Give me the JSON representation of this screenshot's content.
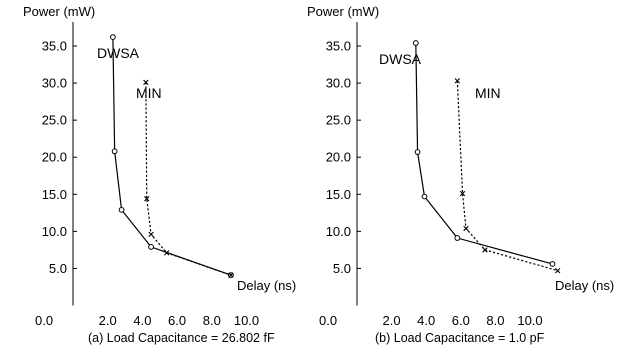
{
  "chart_data": [
    {
      "type": "line",
      "title": "(a)  Load Capacitance = 26.802 fF",
      "xlabel": "Delay (ns)",
      "ylabel": "Power (mW)",
      "origin_label": "0.0",
      "xlim": [
        0,
        11.5
      ],
      "ylim": [
        0,
        38
      ],
      "x_ticks": [
        "2.0",
        "4.0",
        "6.0",
        "8.0",
        "10.0"
      ],
      "y_ticks": [
        "5.0",
        "10.0",
        "15.0",
        "20.0",
        "25.0",
        "30.0",
        "35.0"
      ],
      "grid": false,
      "series": [
        {
          "name": "DWSA",
          "style": "solid",
          "marker": "circle",
          "x": [
            2.3,
            2.4,
            2.8,
            4.5,
            9.1
          ],
          "y": [
            36.2,
            20.8,
            12.9,
            7.9,
            4.1
          ]
        },
        {
          "name": "MIN",
          "style": "dotted",
          "marker": "x",
          "x": [
            4.2,
            4.25,
            4.5,
            5.4,
            9.1
          ],
          "y": [
            30.1,
            14.4,
            9.6,
            7.1,
            4.1
          ]
        }
      ]
    },
    {
      "type": "line",
      "title": "(b)  Load Capacitance = 1.0 pF",
      "xlabel": "Delay (ns)",
      "ylabel": "Power (mW)",
      "origin_label": "0.0",
      "xlim": [
        0,
        13
      ],
      "ylim": [
        0,
        38
      ],
      "x_ticks": [
        "2.0",
        "4.0",
        "6.0",
        "8.0",
        "10.0"
      ],
      "y_ticks": [
        "5.0",
        "10.0",
        "15.0",
        "20.0",
        "25.0",
        "30.0",
        "35.0"
      ],
      "grid": false,
      "series": [
        {
          "name": "DWSA",
          "style": "solid",
          "marker": "circle",
          "x": [
            3.4,
            3.5,
            3.9,
            5.8,
            11.3
          ],
          "y": [
            35.4,
            20.7,
            14.7,
            9.1,
            5.6
          ]
        },
        {
          "name": "MIN",
          "style": "dotted",
          "marker": "x",
          "x": [
            5.8,
            6.1,
            6.3,
            7.4,
            11.6
          ],
          "y": [
            30.3,
            15.1,
            10.4,
            7.5,
            4.7
          ]
        }
      ]
    }
  ]
}
